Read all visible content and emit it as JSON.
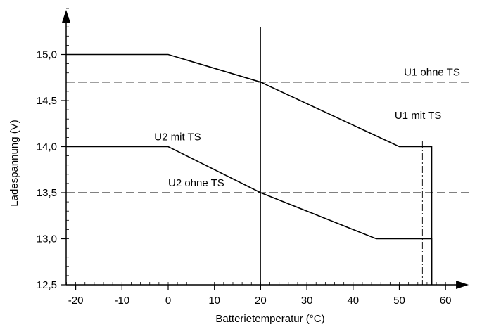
{
  "chart_data": {
    "type": "line",
    "xlabel": "Batterietemperatur (°C)",
    "ylabel": "Ladespannung (V)",
    "xlim": [
      -25,
      65
    ],
    "ylim": [
      12.5,
      15.5
    ],
    "x_ticks": [
      -20,
      -10,
      0,
      10,
      20,
      30,
      40,
      50,
      60
    ],
    "x_tick_labels": [
      "-20",
      "-10",
      "0",
      "10",
      "20",
      "30",
      "40",
      "50",
      "60"
    ],
    "y_ticks": [
      12.5,
      13.0,
      13.5,
      14.0,
      14.5,
      15.0
    ],
    "y_tick_labels": [
      "12,5",
      "13,0",
      "13,5",
      "14,0",
      "14,5",
      "15,0"
    ],
    "series": [
      {
        "name": "U1 mit TS",
        "style": "solid",
        "x": [
          -25,
          0,
          20,
          50,
          57,
          57
        ],
        "y": [
          15.0,
          15.0,
          14.7,
          14.0,
          14.0,
          12.5
        ]
      },
      {
        "name": "U2 mit TS",
        "style": "solid",
        "x": [
          -25,
          0,
          20,
          45,
          57,
          57
        ],
        "y": [
          14.0,
          14.0,
          13.5,
          13.0,
          13.0,
          12.5
        ]
      },
      {
        "name": "U1 ohne TS",
        "style": "dashed",
        "x": [
          -25,
          65
        ],
        "y": [
          14.7,
          14.7
        ]
      },
      {
        "name": "U2 ohne TS",
        "style": "dashed",
        "x": [
          -25,
          65
        ],
        "y": [
          13.5,
          13.5
        ]
      }
    ],
    "reference_lines": [
      {
        "axis": "x",
        "value": 20,
        "style": "thin-solid"
      },
      {
        "axis": "x",
        "value": 55,
        "style": "dash-dot"
      }
    ],
    "annotations": [
      {
        "text": "U1 ohne TS",
        "x": 51,
        "y": 14.77
      },
      {
        "text": "U1 mit TS",
        "x": 49,
        "y": 14.3
      },
      {
        "text": "U2 mit TS",
        "x": -3,
        "y": 14.07
      },
      {
        "text": "U2 ohne TS",
        "x": 0,
        "y": 13.57
      }
    ],
    "grid": false,
    "legend": "none"
  },
  "colors": {
    "line": "#000000",
    "background": "#ffffff"
  }
}
